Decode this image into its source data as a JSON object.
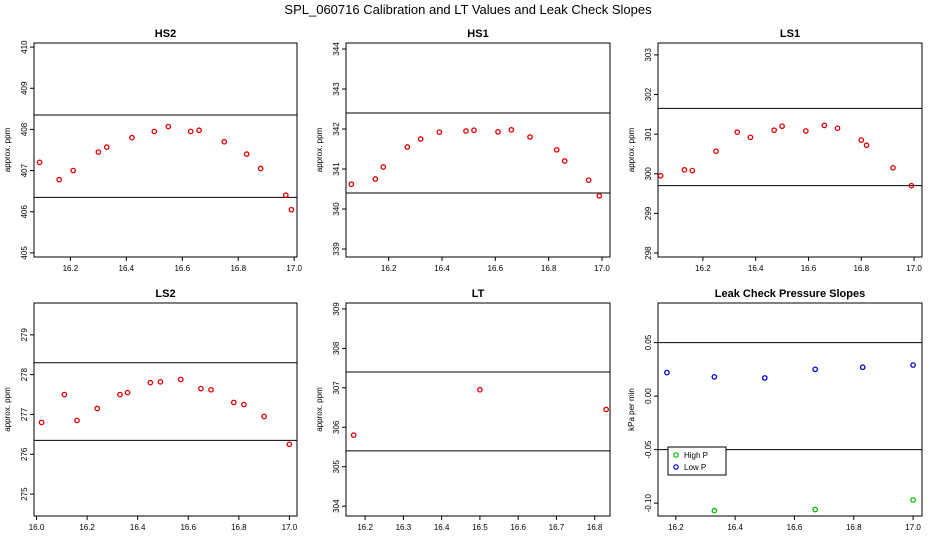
{
  "figure": {
    "title": "SPL_060716  Calibration and LT Values and Leak Check Slopes"
  },
  "chart_data": [
    {
      "type": "scatter",
      "title": "HS2",
      "xlabel": "",
      "ylabel": "approx. ppm",
      "xlim": [
        16.07,
        17.01
      ],
      "ylim": [
        404.9,
        410.1
      ],
      "xticks": [
        16.2,
        16.4,
        16.6,
        16.8,
        17.0
      ],
      "xtick_labels": [
        "16.2",
        "16.4",
        "16.6",
        "16.8",
        "17.0"
      ],
      "yticks": [
        405,
        406,
        407,
        408,
        409,
        410
      ],
      "ytick_labels": [
        "405",
        "406",
        "407",
        "408",
        "409",
        "410"
      ],
      "hlines": [
        406.35,
        408.35
      ],
      "series": [
        {
          "name": "points",
          "color": "#dd0000",
          "marker": "circle",
          "x": [
            16.09,
            16.16,
            16.21,
            16.3,
            16.33,
            16.42,
            16.5,
            16.55,
            16.63,
            16.66,
            16.75,
            16.83,
            16.88,
            16.97,
            16.99
          ],
          "y": [
            407.2,
            406.78,
            407.0,
            407.45,
            407.57,
            407.8,
            407.95,
            408.07,
            407.95,
            407.98,
            407.7,
            407.4,
            407.05,
            406.4,
            406.05
          ]
        }
      ]
    },
    {
      "type": "scatter",
      "title": "HS1",
      "xlabel": "",
      "ylabel": "approx. ppm",
      "xlim": [
        16.04,
        17.03
      ],
      "ylim": [
        338.8,
        344.15
      ],
      "xticks": [
        16.2,
        16.4,
        16.6,
        16.8,
        17.0
      ],
      "xtick_labels": [
        "16.2",
        "16.4",
        "16.6",
        "16.8",
        "17.0"
      ],
      "yticks": [
        339,
        340,
        341,
        342,
        343,
        344
      ],
      "ytick_labels": [
        "339",
        "340",
        "341",
        "342",
        "343",
        "344"
      ],
      "hlines": [
        340.4,
        342.4
      ],
      "series": [
        {
          "name": "points",
          "color": "#dd0000",
          "marker": "circle",
          "x": [
            16.06,
            16.15,
            16.18,
            16.27,
            16.32,
            16.39,
            16.49,
            16.52,
            16.61,
            16.66,
            16.73,
            16.83,
            16.86,
            16.95,
            16.99
          ],
          "y": [
            340.62,
            340.75,
            341.05,
            341.55,
            341.75,
            341.92,
            341.95,
            341.97,
            341.93,
            341.98,
            341.8,
            341.48,
            341.2,
            340.72,
            340.33
          ]
        }
      ]
    },
    {
      "type": "scatter",
      "title": "LS1",
      "xlabel": "",
      "ylabel": "approx. ppm",
      "xlim": [
        16.03,
        17.03
      ],
      "ylim": [
        297.9,
        303.3
      ],
      "xticks": [
        16.2,
        16.4,
        16.6,
        16.8,
        17.0
      ],
      "xtick_labels": [
        "16.2",
        "16.4",
        "16.6",
        "16.8",
        "17.0"
      ],
      "yticks": [
        298,
        299,
        300,
        301,
        302,
        303
      ],
      "ytick_labels": [
        "298",
        "299",
        "300",
        "301",
        "302",
        "303"
      ],
      "hlines": [
        299.7,
        301.65
      ],
      "series": [
        {
          "name": "points",
          "color": "#dd0000",
          "marker": "circle",
          "x": [
            16.04,
            16.13,
            16.16,
            16.25,
            16.33,
            16.38,
            16.47,
            16.5,
            16.59,
            16.66,
            16.71,
            16.8,
            16.82,
            16.92,
            16.99
          ],
          "y": [
            299.95,
            300.1,
            300.08,
            300.57,
            301.05,
            300.92,
            301.1,
            301.2,
            301.08,
            301.22,
            301.15,
            300.85,
            300.72,
            300.15,
            299.7
          ]
        }
      ]
    },
    {
      "type": "scatter",
      "title": "LS2",
      "xlabel": "",
      "ylabel": "approx. ppm",
      "xlim": [
        15.99,
        17.03
      ],
      "ylim": [
        274.45,
        279.8
      ],
      "xticks": [
        16.0,
        16.2,
        16.4,
        16.6,
        16.8,
        17.0
      ],
      "xtick_labels": [
        "16.0",
        "16.2",
        "16.4",
        "16.6",
        "16.8",
        "17.0"
      ],
      "yticks": [
        275,
        276,
        277,
        278,
        279
      ],
      "ytick_labels": [
        "275",
        "276",
        "277",
        "278",
        "279"
      ],
      "hlines": [
        276.35,
        278.3
      ],
      "series": [
        {
          "name": "points",
          "color": "#dd0000",
          "marker": "circle",
          "x": [
            16.02,
            16.11,
            16.16,
            16.24,
            16.33,
            16.36,
            16.45,
            16.49,
            16.57,
            16.65,
            16.69,
            16.78,
            16.82,
            16.9,
            17.0
          ],
          "y": [
            276.8,
            277.5,
            276.85,
            277.15,
            277.5,
            277.55,
            277.8,
            277.82,
            277.88,
            277.65,
            277.62,
            277.3,
            277.25,
            276.95,
            276.25
          ]
        }
      ]
    },
    {
      "type": "scatter",
      "title": "LT",
      "xlabel": "",
      "ylabel": "approx. ppm",
      "xlim": [
        16.15,
        16.84
      ],
      "ylim": [
        303.75,
        309.15
      ],
      "xticks": [
        16.2,
        16.3,
        16.4,
        16.5,
        16.6,
        16.7,
        16.8
      ],
      "xtick_labels": [
        "16.2",
        "16.3",
        "16.4",
        "16.5",
        "16.6",
        "16.7",
        "16.8"
      ],
      "yticks": [
        304,
        305,
        306,
        307,
        308,
        309
      ],
      "ytick_labels": [
        "304",
        "305",
        "306",
        "307",
        "308",
        "309"
      ],
      "hlines": [
        305.4,
        307.4
      ],
      "series": [
        {
          "name": "points",
          "color": "#dd0000",
          "marker": "circle",
          "x": [
            16.17,
            16.5,
            16.83
          ],
          "y": [
            305.8,
            306.95,
            306.45
          ]
        }
      ]
    },
    {
      "type": "scatter",
      "title": "Leak Check Pressure Slopes",
      "xlabel": "",
      "ylabel": "kPa per min",
      "xlim": [
        16.14,
        17.03
      ],
      "ylim": [
        -0.112,
        0.087
      ],
      "xticks": [
        16.2,
        16.4,
        16.6,
        16.8,
        17.0
      ],
      "xtick_labels": [
        "16.2",
        "16.4",
        "16.6",
        "16.8",
        "17.0"
      ],
      "yticks": [
        -0.1,
        -0.05,
        0.0,
        0.05
      ],
      "ytick_labels": [
        "-0.10",
        "-0.05",
        "0.00",
        "0.05"
      ],
      "hlines": [
        -0.05,
        0.05
      ],
      "legend": {
        "position": "bottom-left",
        "entries": [
          "High P",
          "Low P"
        ]
      },
      "series": [
        {
          "name": "High P",
          "color": "#00bb00",
          "marker": "circle",
          "x": [
            16.33,
            16.67,
            17.0
          ],
          "y": [
            -0.107,
            -0.106,
            -0.097
          ]
        },
        {
          "name": "Low P",
          "color": "#0000cc",
          "marker": "circle",
          "x": [
            16.17,
            16.33,
            16.5,
            16.67,
            16.83,
            17.0
          ],
          "y": [
            0.022,
            0.018,
            0.017,
            0.025,
            0.027,
            0.029
          ]
        }
      ]
    }
  ]
}
